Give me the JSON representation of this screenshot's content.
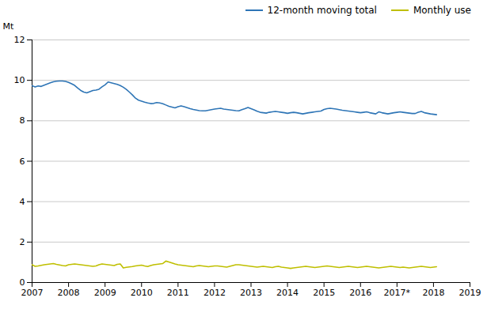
{
  "chart_data": {
    "type": "line",
    "ylabel": "Mt",
    "legend": "upper right",
    "grid": true,
    "xlim": [
      2007,
      2019
    ],
    "xticks": [
      2007,
      2008,
      2009,
      2010,
      2011,
      2012,
      2013,
      2014,
      2015,
      2016,
      {
        "value": 2017,
        "label": "2017*"
      },
      2018,
      2019
    ],
    "ylim": [
      0,
      12
    ],
    "yticks": [
      0,
      2,
      4,
      6,
      8,
      10,
      12
    ],
    "x": [
      2007,
      2007.0833,
      2007.1667,
      2007.25,
      2007.3333,
      2007.4167,
      2007.5,
      2007.5833,
      2007.6667,
      2007.75,
      2007.8333,
      2007.9167,
      2008,
      2008.0833,
      2008.1667,
      2008.25,
      2008.3333,
      2008.4167,
      2008.5,
      2008.5833,
      2008.6667,
      2008.75,
      2008.8333,
      2008.9167,
      2009,
      2009.0833,
      2009.1667,
      2009.25,
      2009.3333,
      2009.4167,
      2009.5,
      2009.5833,
      2009.6667,
      2009.75,
      2009.8333,
      2009.9167,
      2010,
      2010.0833,
      2010.1667,
      2010.25,
      2010.3333,
      2010.4167,
      2010.5,
      2010.5833,
      2010.6667,
      2010.75,
      2010.8333,
      2010.9167,
      2011,
      2011.0833,
      2011.1667,
      2011.25,
      2011.3333,
      2011.4167,
      2011.5,
      2011.5833,
      2011.6667,
      2011.75,
      2011.8333,
      2011.9167,
      2012,
      2012.0833,
      2012.1667,
      2012.25,
      2012.3333,
      2012.4167,
      2012.5,
      2012.5833,
      2012.6667,
      2012.75,
      2012.8333,
      2012.9167,
      2013,
      2013.0833,
      2013.1667,
      2013.25,
      2013.3333,
      2013.4167,
      2013.5,
      2013.5833,
      2013.6667,
      2013.75,
      2013.8333,
      2013.9167,
      2014,
      2014.0833,
      2014.1667,
      2014.25,
      2014.3333,
      2014.4167,
      2014.5,
      2014.5833,
      2014.6667,
      2014.75,
      2014.8333,
      2014.9167,
      2015,
      2015.0833,
      2015.1667,
      2015.25,
      2015.3333,
      2015.4167,
      2015.5,
      2015.5833,
      2015.6667,
      2015.75,
      2015.8333,
      2015.9167,
      2016,
      2016.0833,
      2016.1667,
      2016.25,
      2016.3333,
      2016.4167,
      2016.5,
      2016.5833,
      2016.6667,
      2016.75,
      2016.8333,
      2016.9167,
      2017,
      2017.0833,
      2017.1667,
      2017.25,
      2017.3333,
      2017.4167,
      2017.5,
      2017.5833,
      2017.6667,
      2017.75,
      2017.8333,
      2017.9167,
      2018,
      2018.0833
    ],
    "series": [
      {
        "name": "12-month moving total",
        "color": "#2E75B6",
        "values": [
          9.73,
          9.67,
          9.72,
          9.7,
          9.76,
          9.82,
          9.88,
          9.93,
          9.96,
          9.97,
          9.97,
          9.95,
          9.9,
          9.83,
          9.75,
          9.62,
          9.5,
          9.42,
          9.38,
          9.44,
          9.5,
          9.52,
          9.56,
          9.68,
          9.78,
          9.92,
          9.88,
          9.84,
          9.8,
          9.74,
          9.66,
          9.55,
          9.42,
          9.28,
          9.12,
          9.02,
          8.97,
          8.92,
          8.88,
          8.85,
          8.86,
          8.9,
          8.88,
          8.84,
          8.78,
          8.72,
          8.68,
          8.64,
          8.7,
          8.74,
          8.7,
          8.65,
          8.6,
          8.56,
          8.53,
          8.5,
          8.49,
          8.49,
          8.52,
          8.55,
          8.58,
          8.6,
          8.62,
          8.58,
          8.56,
          8.54,
          8.52,
          8.5,
          8.49,
          8.55,
          8.6,
          8.66,
          8.6,
          8.54,
          8.47,
          8.42,
          8.4,
          8.38,
          8.42,
          8.44,
          8.46,
          8.44,
          8.42,
          8.4,
          8.37,
          8.4,
          8.42,
          8.4,
          8.37,
          8.34,
          8.37,
          8.4,
          8.42,
          8.44,
          8.46,
          8.48,
          8.56,
          8.6,
          8.62,
          8.6,
          8.58,
          8.55,
          8.52,
          8.5,
          8.48,
          8.46,
          8.44,
          8.42,
          8.4,
          8.42,
          8.44,
          8.4,
          8.37,
          8.34,
          8.44,
          8.4,
          8.37,
          8.34,
          8.37,
          8.4,
          8.42,
          8.44,
          8.42,
          8.4,
          8.38,
          8.36,
          8.36,
          8.42,
          8.46,
          8.4,
          8.37,
          8.34,
          8.32,
          8.3
        ]
      },
      {
        "name": "Monthly use",
        "color": "#BFBF00",
        "values": [
          0.88,
          0.8,
          0.82,
          0.85,
          0.88,
          0.9,
          0.92,
          0.94,
          0.9,
          0.87,
          0.84,
          0.82,
          0.88,
          0.9,
          0.92,
          0.9,
          0.88,
          0.86,
          0.84,
          0.82,
          0.8,
          0.82,
          0.88,
          0.92,
          0.9,
          0.88,
          0.86,
          0.84,
          0.9,
          0.92,
          0.72,
          0.75,
          0.77,
          0.79,
          0.82,
          0.84,
          0.86,
          0.82,
          0.79,
          0.84,
          0.88,
          0.9,
          0.92,
          0.94,
          1.06,
          1.02,
          0.97,
          0.92,
          0.88,
          0.86,
          0.84,
          0.82,
          0.8,
          0.78,
          0.82,
          0.84,
          0.82,
          0.8,
          0.78,
          0.8,
          0.82,
          0.82,
          0.8,
          0.78,
          0.76,
          0.8,
          0.84,
          0.88,
          0.88,
          0.86,
          0.84,
          0.82,
          0.8,
          0.78,
          0.76,
          0.78,
          0.8,
          0.78,
          0.76,
          0.74,
          0.78,
          0.8,
          0.76,
          0.74,
          0.72,
          0.7,
          0.72,
          0.74,
          0.76,
          0.78,
          0.8,
          0.78,
          0.76,
          0.74,
          0.76,
          0.78,
          0.8,
          0.82,
          0.8,
          0.78,
          0.76,
          0.74,
          0.76,
          0.78,
          0.8,
          0.78,
          0.76,
          0.74,
          0.76,
          0.78,
          0.8,
          0.78,
          0.76,
          0.74,
          0.72,
          0.74,
          0.76,
          0.78,
          0.8,
          0.78,
          0.76,
          0.74,
          0.76,
          0.74,
          0.72,
          0.74,
          0.76,
          0.78,
          0.8,
          0.78,
          0.76,
          0.74,
          0.76,
          0.78
        ]
      }
    ]
  }
}
